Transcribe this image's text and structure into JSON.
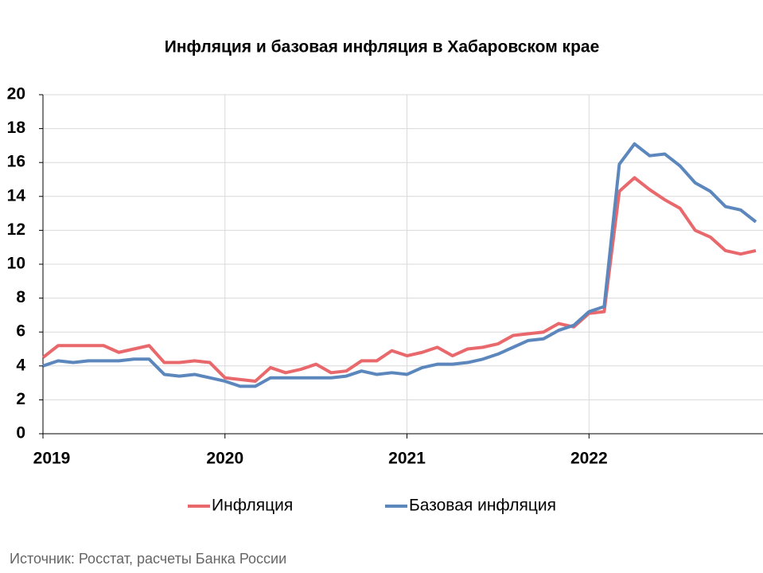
{
  "chart_data": {
    "type": "line",
    "title": "Инфляция и базовая инфляция в Хабаровском крае",
    "source": "Источник: Росстат, расчеты Банка России",
    "categories": [
      "2019",
      null,
      null,
      null,
      null,
      null,
      null,
      null,
      null,
      null,
      null,
      null,
      "2020",
      null,
      null,
      null,
      null,
      null,
      null,
      null,
      null,
      null,
      null,
      null,
      "2021",
      null,
      null,
      null,
      null,
      null,
      null,
      null,
      null,
      null,
      null,
      null,
      "2022",
      null,
      null,
      null,
      null,
      null,
      null,
      null,
      null,
      null,
      null,
      null
    ],
    "series": [
      {
        "name": "Инфляция",
        "color": "#e8686c",
        "values": [
          4.5,
          5.2,
          5.2,
          5.2,
          5.2,
          4.8,
          5.0,
          5.2,
          4.2,
          4.2,
          4.3,
          4.2,
          3.3,
          3.2,
          3.1,
          3.9,
          3.6,
          3.8,
          4.1,
          3.6,
          3.7,
          4.3,
          4.3,
          4.9,
          4.6,
          4.8,
          5.1,
          4.6,
          5.0,
          5.1,
          5.3,
          5.8,
          5.9,
          6.0,
          6.5,
          6.3,
          7.1,
          7.2,
          14.3,
          15.1,
          14.4,
          13.8,
          13.3,
          12.0,
          11.6,
          10.8,
          10.6,
          10.8
        ]
      },
      {
        "name": "Базовая инфляция",
        "color": "#5b87bd",
        "values": [
          4.0,
          4.3,
          4.2,
          4.3,
          4.3,
          4.3,
          4.4,
          4.4,
          3.5,
          3.4,
          3.5,
          3.3,
          3.1,
          2.8,
          2.8,
          3.3,
          3.3,
          3.3,
          3.3,
          3.3,
          3.4,
          3.7,
          3.5,
          3.6,
          3.5,
          3.9,
          4.1,
          4.1,
          4.2,
          4.4,
          4.7,
          5.1,
          5.5,
          5.6,
          6.1,
          6.4,
          7.2,
          7.5,
          15.9,
          17.1,
          16.4,
          16.5,
          15.8,
          14.8,
          14.3,
          13.4,
          13.2,
          12.5
        ]
      }
    ],
    "ylim": [
      0,
      20
    ],
    "yticks": [
      0,
      2,
      4,
      6,
      8,
      10,
      12,
      14,
      16,
      18,
      20
    ],
    "grid": true,
    "legend": "bottom"
  }
}
